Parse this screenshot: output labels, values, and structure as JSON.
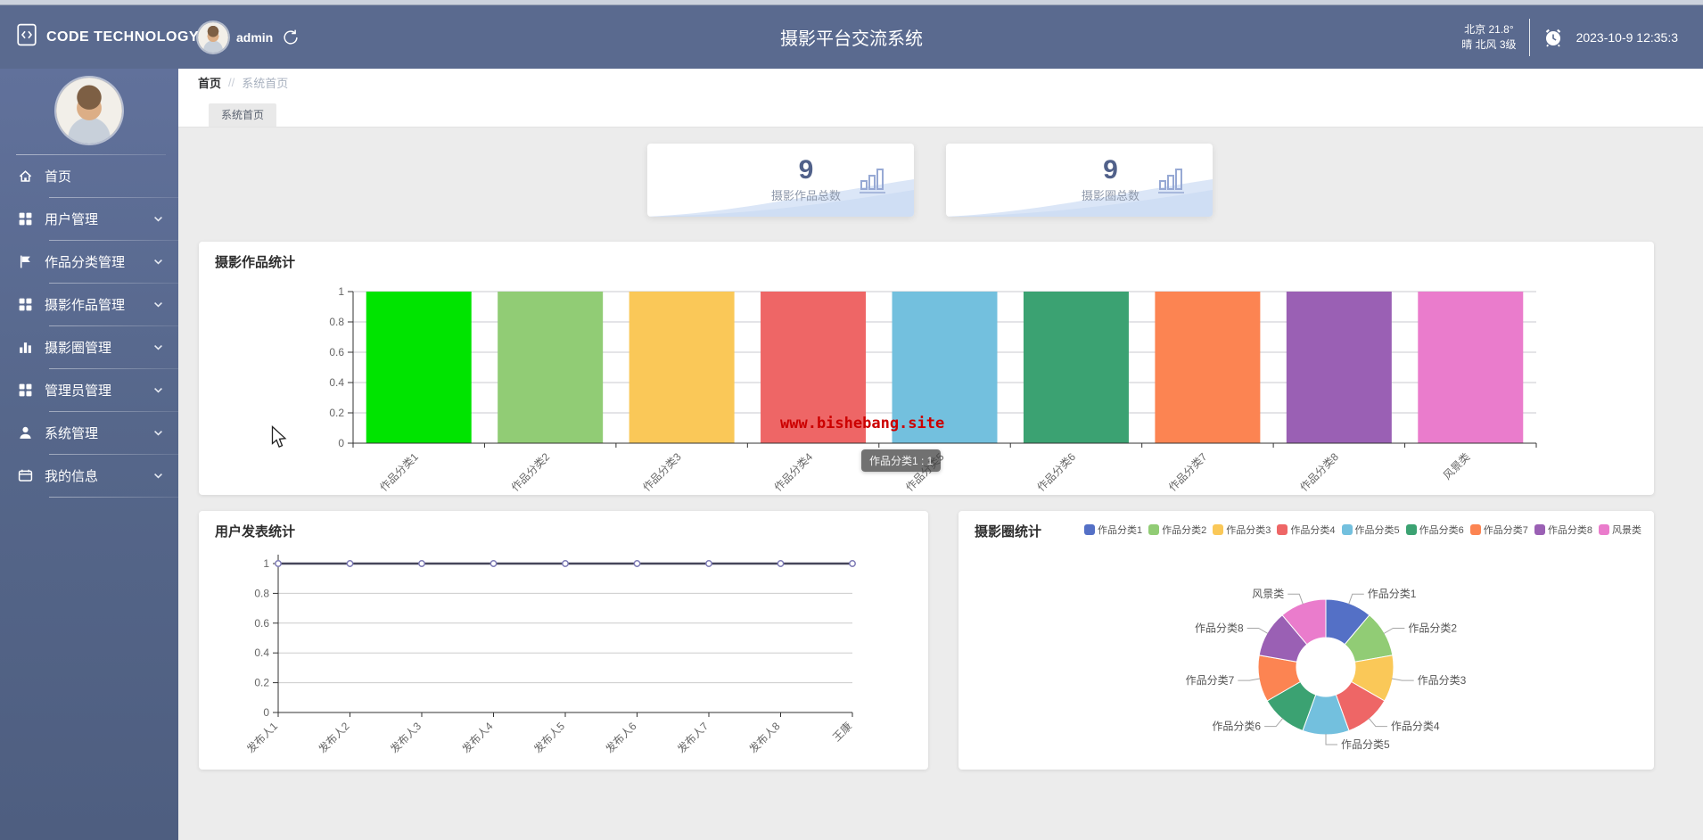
{
  "header": {
    "logo_text": "CODE TECHNOLOGY",
    "username": "admin",
    "title": "摄影平台交流系统",
    "weather_line1": "北京  21.8°",
    "weather_line2": "晴  北风  3级",
    "datetime": "2023-10-9 12:35:3"
  },
  "sidebar": {
    "items": [
      {
        "id": "home",
        "label": "首页",
        "icon": "home-icon",
        "expandable": false
      },
      {
        "id": "user-mgmt",
        "label": "用户管理",
        "icon": "grid-icon",
        "expandable": true
      },
      {
        "id": "category-mgmt",
        "label": "作品分类管理",
        "icon": "flag-icon",
        "expandable": true
      },
      {
        "id": "works-mgmt",
        "label": "摄影作品管理",
        "icon": "grid-icon",
        "expandable": true
      },
      {
        "id": "circle-mgmt",
        "label": "摄影圈管理",
        "icon": "bar-chart-icon",
        "expandable": true
      },
      {
        "id": "admin-mgmt",
        "label": "管理员管理",
        "icon": "grid-icon",
        "expandable": true
      },
      {
        "id": "system-mgmt",
        "label": "系统管理",
        "icon": "user-icon",
        "expandable": true
      },
      {
        "id": "my-info",
        "label": "我的信息",
        "icon": "card-icon",
        "expandable": true
      }
    ]
  },
  "breadcrumb": {
    "root": "首页",
    "separator": "//",
    "current": "系统首页"
  },
  "tab": {
    "label": "系统首页"
  },
  "stat_cards": [
    {
      "value": "9",
      "label": "摄影作品总数"
    },
    {
      "value": "9",
      "label": "摄影圈总数"
    }
  ],
  "watermark": "www.bishebang.site",
  "tooltip": "作品分类1 : 1",
  "colors": {
    "header_bg": "#5a6a8f",
    "content_bg": "#ececec",
    "watermark_red": "#cc0000"
  },
  "chart_data": [
    {
      "type": "bar",
      "title": "摄影作品统计",
      "categories": [
        "作品分类1",
        "作品分类2",
        "作品分类3",
        "作品分类4",
        "作品分类5",
        "作品分类6",
        "作品分类7",
        "作品分类8",
        "风景类"
      ],
      "values": [
        1,
        1,
        1,
        1,
        1,
        1,
        1,
        1,
        1
      ],
      "colors": [
        "#00e400",
        "#91cc75",
        "#fac858",
        "#ee6666",
        "#73c0de",
        "#3ba272",
        "#fc8452",
        "#9a60b4",
        "#ea7ccc"
      ],
      "xlabel": "",
      "ylabel": "",
      "ylim": [
        0,
        1
      ],
      "yticks": [
        0,
        0.2,
        0.4,
        0.6,
        0.8,
        1
      ],
      "grid": true,
      "x_label_rotation": 45
    },
    {
      "type": "line",
      "title": "用户发表统计",
      "categories": [
        "发布人1",
        "发布人2",
        "发布人3",
        "发布人4",
        "发布人5",
        "发布人6",
        "发布人7",
        "发布人8",
        "王康"
      ],
      "values": [
        1,
        1,
        1,
        1,
        1,
        1,
        1,
        1,
        1
      ],
      "line_color": "#46465a",
      "marker_color": "#7d7ab5",
      "xlabel": "",
      "ylabel": "",
      "ylim": [
        0,
        1
      ],
      "yticks": [
        0,
        0.2,
        0.4,
        0.6,
        0.8,
        1
      ],
      "grid": true,
      "x_label_rotation": 45
    },
    {
      "type": "pie",
      "title": "摄影圈统计",
      "labels": [
        "作品分类1",
        "作品分类2",
        "作品分类3",
        "作品分类4",
        "作品分类5",
        "作品分类6",
        "作品分类7",
        "作品分类8",
        "风景类"
      ],
      "values": [
        1,
        1,
        1,
        1,
        1,
        1,
        1,
        1,
        1
      ],
      "colors": [
        "#5470c6",
        "#91cc75",
        "#fac858",
        "#ee6666",
        "#73c0de",
        "#3ba272",
        "#fc8452",
        "#9a60b4",
        "#ea7ccc"
      ],
      "donut": true,
      "legend_position": "top-right"
    }
  ]
}
